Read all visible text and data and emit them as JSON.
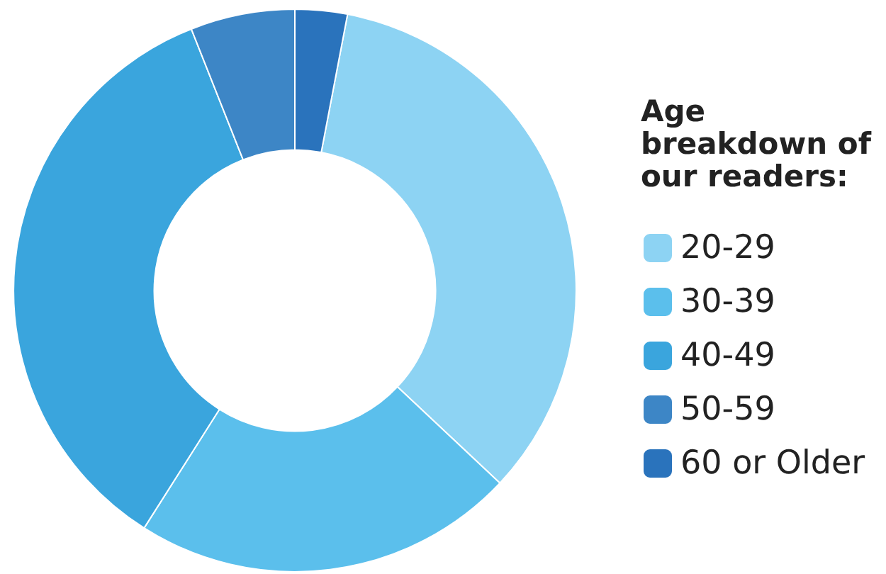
{
  "chart_data": {
    "type": "donut",
    "legend_title": "Age breakdown of our readers:",
    "legend": "right",
    "categories": [
      "20-29",
      "30-39",
      "40-49",
      "50-59",
      "60 or Older"
    ],
    "values": [
      34,
      22,
      35,
      6,
      3
    ],
    "colors": [
      "#8dd3f3",
      "#5bbfec",
      "#3aa5dd",
      "#3d86c6",
      "#2a73bc"
    ]
  }
}
